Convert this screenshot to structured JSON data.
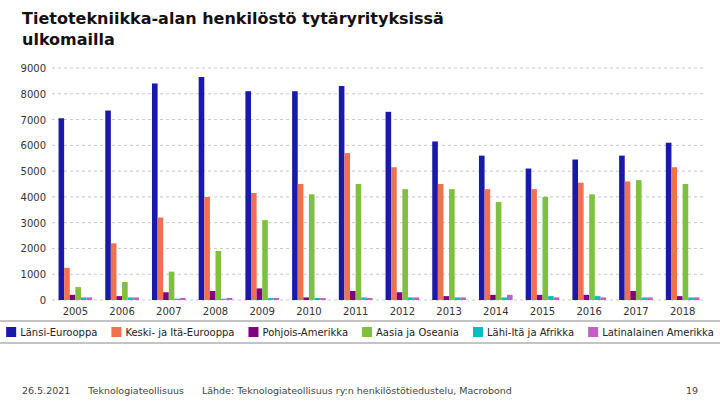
{
  "chart_data": {
    "type": "bar",
    "title": "Tietotekniikka-alan henkilöstö tytäryrityksissä",
    "subtitle": "ulkomailla",
    "categories": [
      "2005",
      "2006",
      "2007",
      "2008",
      "2009",
      "2010",
      "2011",
      "2012",
      "2013",
      "2014",
      "2015",
      "2016",
      "2017",
      "2018"
    ],
    "series": [
      {
        "name": "Länsi-Eurooppa",
        "color": "#1a1aaa",
        "values": [
          7050,
          7350,
          8400,
          8650,
          8100,
          8100,
          8300,
          7300,
          6150,
          5600,
          5100,
          5450,
          5600,
          6100
        ]
      },
      {
        "name": "Keski- ja Itä-Eurooppa",
        "color": "#f07050",
        "values": [
          1250,
          2200,
          3200,
          4000,
          4150,
          4500,
          5700,
          5150,
          4500,
          4300,
          4300,
          4550,
          4600,
          5150
        ]
      },
      {
        "name": "Pohjois-Amerikka",
        "color": "#800080",
        "values": [
          200,
          150,
          300,
          350,
          450,
          100,
          350,
          300,
          150,
          200,
          200,
          200,
          350,
          150
        ]
      },
      {
        "name": "Aasia ja Oseania",
        "color": "#80c040",
        "values": [
          500,
          700,
          1100,
          1900,
          3100,
          4100,
          4500,
          4300,
          4300,
          3800,
          4000,
          4100,
          4650,
          4500
        ]
      },
      {
        "name": "Lähi-Itä ja Afrikka",
        "color": "#00c0c0",
        "values": [
          100,
          100,
          50,
          50,
          80,
          80,
          100,
          100,
          100,
          100,
          150,
          150,
          100,
          100
        ]
      },
      {
        "name": "Latinalainen Amerikka",
        "color": "#c060c0",
        "values": [
          100,
          100,
          80,
          80,
          80,
          80,
          80,
          100,
          100,
          200,
          100,
          100,
          100,
          100
        ]
      }
    ],
    "ylim": [
      0,
      9000
    ],
    "yticks": [
      0,
      1000,
      2000,
      3000,
      4000,
      5000,
      6000,
      7000,
      8000,
      9000
    ],
    "grid": true,
    "legend": "bottom",
    "annotations": [
      "26.5.2021",
      "Teknologiateollisuus",
      "Lähde: Teknologiateollisuus ry:n henkilöstötiedustelu, Macrobond",
      "19"
    ]
  }
}
